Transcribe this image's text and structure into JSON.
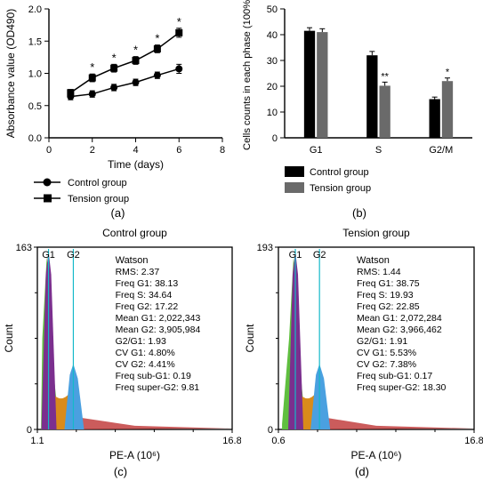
{
  "panel_a": {
    "type": "line",
    "ylabel": "Absorbance value (OD490)",
    "xlabel": "Time (days)",
    "ylim": [
      0,
      2.0
    ],
    "ytick_step": 0.5,
    "xlim": [
      0,
      8
    ],
    "xtick_step": 2,
    "series": [
      {
        "name": "Control group",
        "marker": "circle",
        "color": "#000000",
        "x": [
          1,
          2,
          3,
          4,
          5,
          6
        ],
        "y": [
          0.64,
          0.68,
          0.78,
          0.86,
          0.97,
          1.07
        ],
        "err": [
          0.05,
          0.05,
          0.05,
          0.05,
          0.05,
          0.07
        ]
      },
      {
        "name": "Tension group",
        "marker": "square",
        "color": "#000000",
        "x": [
          1,
          2,
          3,
          4,
          5,
          6
        ],
        "y": [
          0.7,
          0.93,
          1.08,
          1.2,
          1.38,
          1.63
        ],
        "err": [
          0.05,
          0.06,
          0.06,
          0.06,
          0.06,
          0.07
        ],
        "sig": [
          "",
          "*",
          "*",
          "*",
          "*",
          "*"
        ]
      }
    ],
    "label": "(a)",
    "axis_color": "#000000",
    "label_fontsize": 12
  },
  "panel_b": {
    "type": "bar",
    "ylabel": "Cells counts in each phase (100%)",
    "ylim": [
      0,
      50
    ],
    "ytick_step": 10,
    "categories": [
      "G1",
      "S",
      "G2/M"
    ],
    "groups": [
      {
        "name": "Control group",
        "color": "#000000",
        "values": [
          41.5,
          32.0,
          15.0
        ],
        "err": [
          1.2,
          1.5,
          0.8
        ]
      },
      {
        "name": "Tension group",
        "color": "#6a6a6a",
        "values": [
          41.0,
          20.2,
          22.0
        ],
        "err": [
          1.3,
          1.4,
          1.2
        ],
        "sig": [
          "",
          "**",
          "*"
        ]
      }
    ],
    "bar_width": 0.35,
    "label": "(b)",
    "label_fontsize": 12
  },
  "panel_c": {
    "type": "histogram",
    "title": "Control group",
    "label": "(c)",
    "ylabel": "Count",
    "xlabel": "PE-A (10⁶)",
    "ylim": [
      0,
      163
    ],
    "xlim": [
      1.1,
      16.8
    ],
    "g1": {
      "x": 2.0,
      "label": "G1",
      "line_color": "#14b9c9"
    },
    "g2": {
      "x": 4.0,
      "label": "G2",
      "line_color": "#14b9c9"
    },
    "hist_colors": {
      "g1_peak": "#7b2f8e",
      "left_shoulder": "#5fbf3f",
      "mid": "#d98b1a",
      "g2_peak": "#4aa0e0",
      "tail": "#c24040"
    },
    "stats": {
      "header": "Watson",
      "RMS": "2.37",
      "Freq G1": "38.13",
      "Freq S": "34.64",
      "Freq G2": "17.22",
      "Mean G1": "2,022,343",
      "Mean G2": "3,905,984",
      "G2/G1": "1.93",
      "CV G1": "4.80%",
      "CV G2": "4.41%",
      "Freq sub-G1": "0.19",
      "Freq super-G2": "9.81"
    }
  },
  "panel_d": {
    "type": "histogram",
    "title": "Tension group",
    "label": "(d)",
    "ylabel": "Count",
    "xlabel": "PE-A (10⁶)",
    "ylim": [
      0,
      193
    ],
    "xlim": [
      0.6,
      16.8
    ],
    "g1": {
      "x": 2.0,
      "label": "G1",
      "line_color": "#14b9c9"
    },
    "g2": {
      "x": 4.0,
      "label": "G2",
      "line_color": "#14b9c9"
    },
    "hist_colors": {
      "g1_peak": "#7b2f8e",
      "left_shoulder": "#5fbf3f",
      "mid": "#d98b1a",
      "g2_peak": "#4aa0e0",
      "tail": "#c24040"
    },
    "stats": {
      "header": "Watson",
      "RMS": "1.44",
      "Freq G1": "38.75",
      "Freq S": "19.93",
      "Freq G2": "22.85",
      "Mean G1": "2,072,284",
      "Mean G2": "3,966,462",
      "G2/G1": "1.91",
      "CV G1": "5.53%",
      "CV G2": "7.38%",
      "Freq sub-G1": "0.17",
      "Freq super-G2": "18.30"
    }
  }
}
